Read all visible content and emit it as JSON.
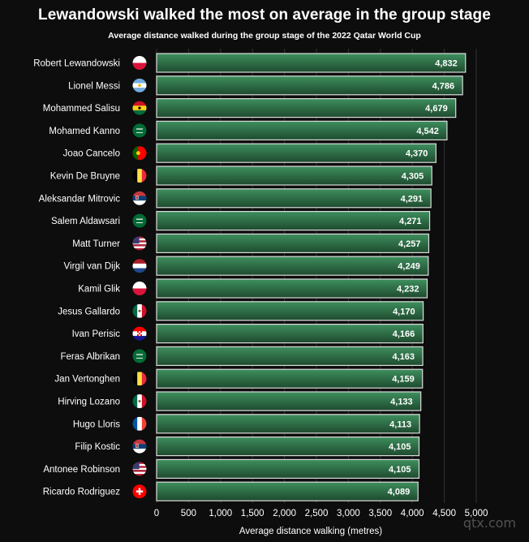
{
  "chart_data": {
    "type": "bar",
    "orientation": "horizontal",
    "title": "Lewandowski walked the most on average in the group stage",
    "subtitle": "Average distance walked during the group stage of the 2022 Qatar World Cup",
    "xlabel": "Average distance walking (metres)",
    "ylabel": "",
    "xlim": [
      0,
      5000
    ],
    "xticks": [
      "0",
      "500",
      "1,000",
      "1,500",
      "2,000",
      "2,500",
      "3,000",
      "3,500",
      "4,000",
      "4,500",
      "5,000"
    ],
    "xtick_values": [
      0,
      500,
      1000,
      1500,
      2000,
      2500,
      3000,
      3500,
      4000,
      4500,
      5000
    ],
    "grid": true,
    "categories": [
      "Robert Lewandowski",
      "Lionel Messi",
      "Mohammed Salisu",
      "Mohamed Kanno",
      "Joao Cancelo",
      "Kevin De Bruyne",
      "Aleksandar Mitrovic",
      "Salem Aldawsari",
      "Matt Turner",
      "Virgil van Dijk",
      "Kamil Glik",
      "Jesus Gallardo",
      "Ivan Perisic",
      "Feras Albrikan",
      "Jan Vertonghen",
      "Hirving Lozano",
      "Hugo Lloris",
      "Filip Kostic",
      "Antonee Robinson",
      "Ricardo Rodriguez"
    ],
    "values": [
      4832,
      4786,
      4679,
      4542,
      4370,
      4305,
      4291,
      4271,
      4257,
      4249,
      4232,
      4170,
      4166,
      4163,
      4159,
      4133,
      4113,
      4105,
      4105,
      4089
    ],
    "data_labels": [
      "4,832",
      "4,786",
      "4,679",
      "4,542",
      "4,370",
      "4,305",
      "4,291",
      "4,271",
      "4,257",
      "4,249",
      "4,232",
      "4,170",
      "4,166",
      "4,163",
      "4,159",
      "4,133",
      "4,113",
      "4,105",
      "4,105",
      "4,089"
    ],
    "flags": [
      "poland-flag-icon",
      "argentina-flag-icon",
      "ghana-flag-icon",
      "saudi-arabia-flag-icon",
      "portugal-flag-icon",
      "belgium-flag-icon",
      "serbia-flag-icon",
      "saudi-arabia-flag-icon",
      "usa-flag-icon",
      "netherlands-flag-icon",
      "poland-flag-icon",
      "mexico-flag-icon",
      "croatia-flag-icon",
      "saudi-arabia-flag-icon",
      "belgium-flag-icon",
      "mexico-flag-icon",
      "france-flag-icon",
      "serbia-flag-icon",
      "usa-flag-icon",
      "switzerland-flag-icon"
    ],
    "colors": {
      "background": "#0d0d0d",
      "bar_top": "#3e8f5e",
      "bar_bottom": "#1e4a2e",
      "bar_border": "#dcdcdc",
      "grid": "#333333",
      "text": "#ffffff"
    }
  },
  "watermark": "qtx.com"
}
